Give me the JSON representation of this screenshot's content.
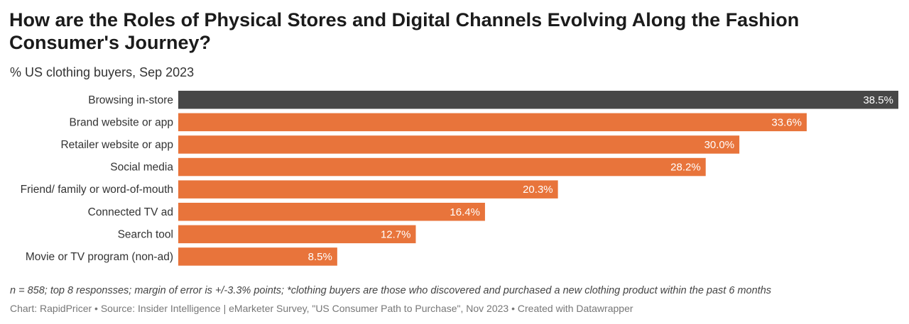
{
  "header": {
    "title": "How are the Roles of Physical Stores and Digital Channels Evolving Along the Fashion Consumer's Journey?",
    "subtitle": "% US clothing buyers, Sep 2023"
  },
  "chart_data": {
    "type": "bar",
    "orientation": "horizontal",
    "categories": [
      "Browsing in-store",
      "Brand website or app",
      "Retailer website or app",
      "Social media",
      "Friend/ family or word-of-mouth",
      "Connected TV ad",
      "Search tool",
      "Movie or TV program (non-ad)"
    ],
    "values": [
      38.5,
      33.6,
      30.0,
      28.2,
      20.3,
      16.4,
      12.7,
      8.5
    ],
    "value_labels": [
      "38.5%",
      "33.6%",
      "30.0%",
      "28.2%",
      "20.3%",
      "16.4%",
      "12.7%",
      "8.5%"
    ],
    "xlim": [
      0,
      38.5
    ],
    "grid": false,
    "colors": {
      "highlight": "#474747",
      "default": "#e8743b"
    },
    "highlight_index": 0
  },
  "footer": {
    "note": "n = 858; top 8 responsses; margin of error is +/-3.3% points; *clothing buyers are those who discovered and purchased a new clothing product within the past 6 months",
    "credit": "Chart: RapidPricer • Source: Insider Intelligence | eMarketer Survey, \"US Consumer Path to Purchase\", Nov 2023 • Created with Datawrapper"
  }
}
